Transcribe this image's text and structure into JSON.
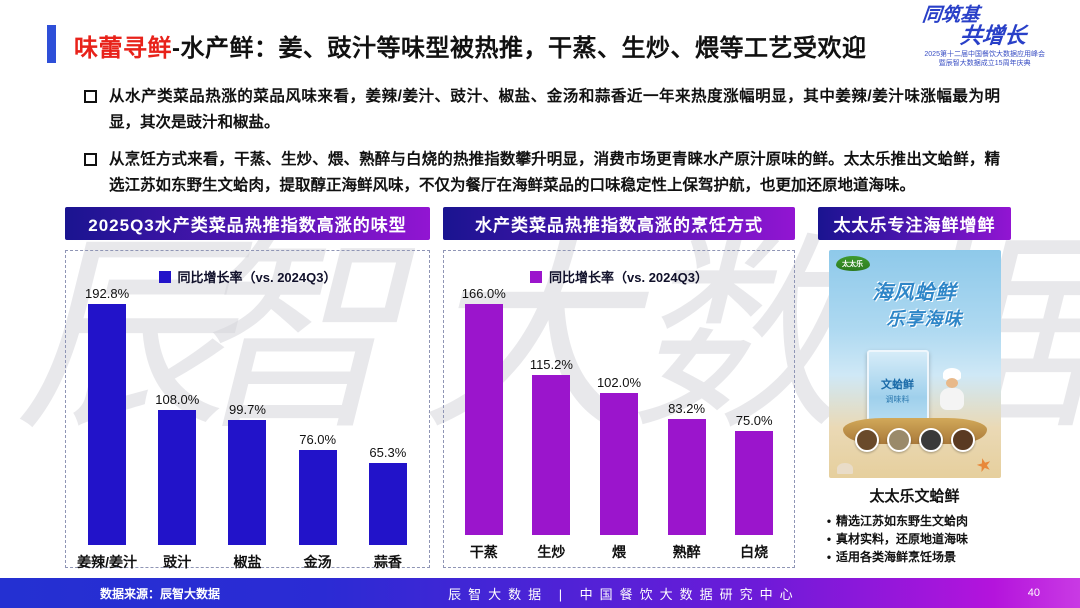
{
  "header": {
    "title_red": "味蕾寻鲜",
    "title_rest": "-水产鲜：姜、豉汁等味型被热推，干蒸、生炒、煨等工艺受欢迎",
    "badge": {
      "line1": "同筑基",
      "line2": "共增长",
      "sub1": "2025第十二届中国餐饮大数据应用峰会",
      "sub2": "暨辰智大数据成立15周年庆典"
    }
  },
  "bullets": [
    {
      "text": "从水产类菜品热涨的菜品风味来看，姜辣/姜汁、豉汁、椒盐、金汤和蒜香近一年来热度涨幅明显，其中姜辣/姜汁味涨幅最为明显，其次是豉汁和椒盐。"
    },
    {
      "text": "从烹饪方式来看，干蒸、生炒、煨、熟醉与白烧的热推指数攀升明显，消费市场更青睐水产原汁原味的鲜。太太乐推出文蛤鲜，精选江苏如东野生文蛤肉，提取醇正海鲜风味，不仅为餐厅在海鲜菜品的口味稳定性上保驾护航，也更加还原地道海味。"
    }
  ],
  "chart_data": [
    {
      "type": "bar",
      "title": "2025Q3水产类菜品热推指数高涨的味型",
      "legend": "同比增长率（vs. 2024Q3）",
      "categories": [
        "姜辣/姜汁",
        "豉汁",
        "椒盐",
        "金汤",
        "蒜香"
      ],
      "values": [
        192.8,
        108.0,
        99.7,
        76.0,
        65.3
      ],
      "unit": "%",
      "bar_color": "#2213c9",
      "ylim": [
        0,
        200
      ],
      "grid": false,
      "legend_position": "top-center"
    },
    {
      "type": "bar",
      "title": "水产类菜品热推指数高涨的烹饪方式",
      "legend": "同比增长率（vs. 2024Q3）",
      "categories": [
        "干蒸",
        "生炒",
        "煨",
        "熟醉",
        "白烧"
      ],
      "values": [
        166.0,
        115.2,
        102.0,
        83.2,
        75.0
      ],
      "unit": "%",
      "bar_color": "#9b15cc",
      "ylim": [
        0,
        180
      ],
      "grid": false,
      "legend_position": "top-center"
    }
  ],
  "brand_panel": {
    "header": "太太乐专注海鲜增鲜",
    "poster": {
      "logo": "太太乐",
      "title_line1": "海风蛤鲜",
      "title_line2": "乐享海味",
      "packet_line1": "文蛤鲜",
      "packet_line2": "调味料"
    },
    "product_name": "太太乐文蛤鲜",
    "points": [
      "精选江苏如东野生文蛤肉",
      "真材实料，还原地道海味",
      "适用各类海鲜烹饪场景"
    ]
  },
  "watermark": {
    "text": "辰智大数据"
  },
  "footer": {
    "source": "数据来源：辰智大数据",
    "center": "辰智大数据 | 中国餐饮大数据研究中心",
    "page": "40"
  },
  "colors": {
    "accent_blue": "#2e4fd8",
    "title_red": "#e8221a",
    "bar_blue": "#2213c9",
    "bar_purple": "#9b15cc",
    "panel_header_gradient_start": "#1a1490",
    "panel_header_gradient_end": "#9215d2",
    "footer_gradient_start": "#2430d2",
    "footer_gradient_end": "#b414dc",
    "dish_colors": [
      "#6a4a2a",
      "#9a8a6a",
      "#3a3a3a",
      "#5a3a22"
    ]
  }
}
